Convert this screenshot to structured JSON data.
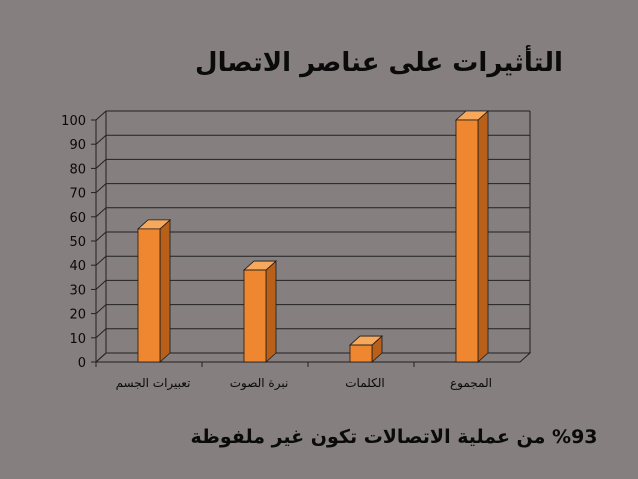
{
  "slide": {
    "title": "التأثيرات على عناصر الاتصال",
    "caption": "%93 من عملية الاتصالات تكون غير ملفوظة"
  },
  "chart_data": {
    "type": "bar",
    "categories": [
      "تعبيرات الجسم",
      "نبرة الصوت",
      "الكلمات",
      "المجموع"
    ],
    "values": [
      55,
      38,
      7,
      100
    ],
    "ylim": [
      0,
      100
    ],
    "yticks": [
      0,
      10,
      20,
      30,
      40,
      50,
      60,
      70,
      80,
      90,
      100
    ],
    "grid": true,
    "legend": "none",
    "colors": {
      "bar_front": "#ef8730",
      "bar_top": "#f6a85c",
      "bar_side": "#b8601a",
      "plot_bg": "#857f80"
    }
  }
}
